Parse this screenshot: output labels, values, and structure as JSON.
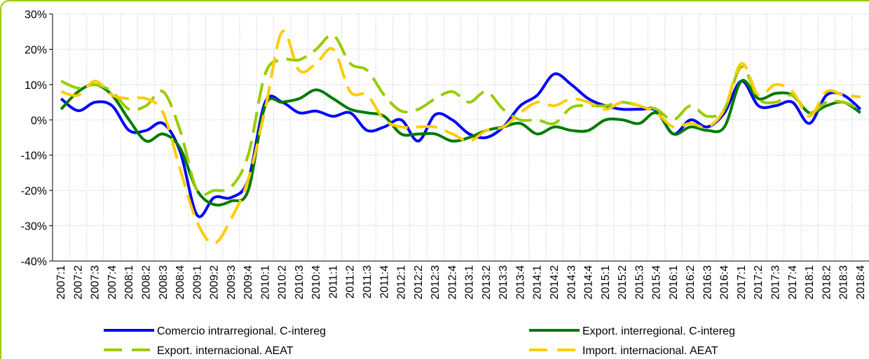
{
  "chart_data": {
    "type": "line",
    "categories": [
      "2007:1",
      "2007:2",
      "2007:3",
      "2007:4",
      "2008:1",
      "2008:2",
      "2008:3",
      "2008:4",
      "2009:1",
      "2009:2",
      "2009:3",
      "2009:4",
      "2010:1",
      "2010:2",
      "2010:3",
      "2010:4",
      "2011:1",
      "2011:2",
      "2011:3",
      "2011:4",
      "2012:1",
      "2012:2",
      "2012:3",
      "2012:4",
      "2013:1",
      "2013:2",
      "2013:3",
      "2013:4",
      "2014:1",
      "2014:2",
      "2014:3",
      "2014:4",
      "2015:1",
      "2015:2",
      "2015:3",
      "2015:4",
      "2016:1",
      "2016:2",
      "2016:3",
      "2016:4",
      "2017:1",
      "2017:2",
      "2017:3",
      "2017:4",
      "2018:1",
      "2018:2",
      "2018:3",
      "2018:4"
    ],
    "series": [
      {
        "name": "Comercio intrarregional. C-intereg",
        "color": "#0000ff",
        "dash": false,
        "values": [
          6,
          2.6,
          5,
          4,
          -3,
          -3,
          -1,
          -9,
          -27,
          -22,
          -22,
          -17,
          5,
          5,
          2,
          2.5,
          1,
          2,
          -3,
          -2,
          0,
          -6,
          1.5,
          0,
          -4,
          -5,
          -2,
          4,
          7,
          13,
          10,
          6,
          4,
          3,
          3,
          2.6,
          -4,
          0,
          -2,
          2,
          11,
          4,
          4,
          5,
          -1,
          7,
          7,
          3
        ]
      },
      {
        "name": "Export. interregional. C-intereg",
        "color": "#007a00",
        "dash": false,
        "values": [
          3,
          8,
          10,
          7,
          0,
          -6,
          -4,
          -8,
          -20,
          -24,
          -23,
          -20,
          4,
          5,
          6,
          8.5,
          6,
          3,
          2,
          1,
          -4,
          -4,
          -4,
          -6,
          -5,
          -3,
          -2,
          -1,
          -4,
          -2,
          -3,
          -3,
          0,
          0,
          -1,
          2,
          -4,
          -2,
          -3,
          -2,
          11,
          6,
          7.5,
          7,
          2,
          4,
          5,
          2
        ]
      },
      {
        "name": "Export. internacional. AEAT",
        "color": "#99cc00",
        "dash": true,
        "values": [
          11,
          9,
          10,
          8,
          3,
          4,
          8,
          -3,
          -20,
          -20,
          -19,
          -10,
          13,
          17,
          17,
          20,
          24,
          16,
          14,
          7,
          2.5,
          3,
          6,
          8,
          5,
          8,
          3,
          0,
          0,
          -1,
          3.5,
          4,
          4,
          5,
          4,
          3,
          0,
          4,
          1,
          3,
          15,
          6,
          5,
          7,
          2,
          5,
          5,
          3
        ]
      },
      {
        "name": "Import. internacional. AEAT",
        "color": "#ffcc00",
        "dash": true,
        "values": [
          8,
          7,
          11,
          7,
          6,
          6,
          2,
          -14,
          -29,
          -35,
          -28,
          -17,
          3,
          25,
          14,
          16,
          20,
          8,
          7,
          0,
          -2,
          -2,
          -2,
          -4,
          -6,
          -3,
          -2,
          2,
          5,
          4,
          6,
          5,
          3,
          5,
          4,
          2,
          -2,
          -1,
          -2,
          3,
          16,
          7,
          10,
          8,
          1,
          8,
          7,
          6.5
        ]
      }
    ],
    "ylim": [
      -40,
      30
    ],
    "yticks": [
      {
        "value": -40,
        "label": "-40%"
      },
      {
        "value": -30,
        "label": "-30%"
      },
      {
        "value": -20,
        "label": "-20%"
      },
      {
        "value": -10,
        "label": "-10%"
      },
      {
        "value": 0,
        "label": "0%"
      },
      {
        "value": 10,
        "label": "10%"
      },
      {
        "value": 20,
        "label": "20%"
      },
      {
        "value": 30,
        "label": "30%"
      }
    ],
    "grid": true
  }
}
